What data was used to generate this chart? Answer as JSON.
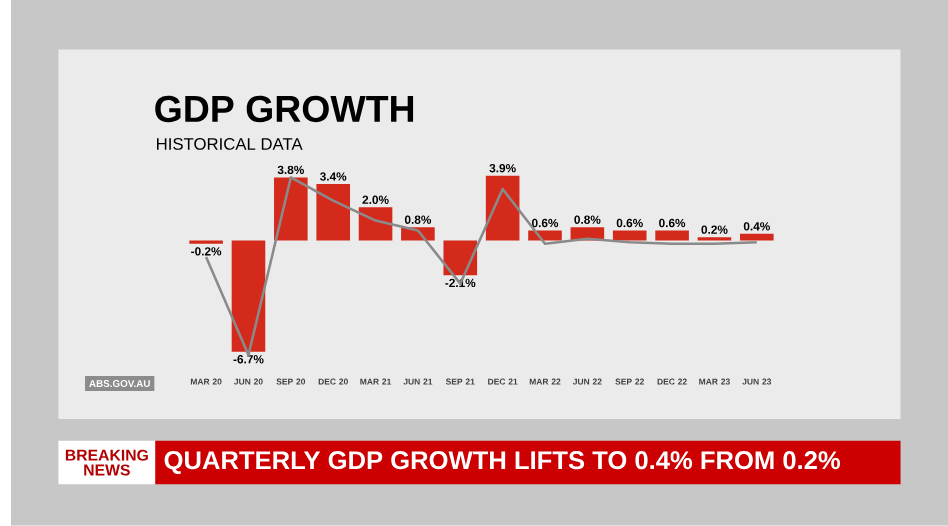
{
  "chart_data": {
    "type": "bar",
    "title": "GDP GROWTH",
    "subtitle": "HISTORICAL DATA",
    "categories": [
      "MAR 20",
      "JUN 20",
      "SEP 20",
      "DEC 20",
      "MAR 21",
      "JUN 21",
      "SEP 21",
      "DEC 21",
      "MAR 22",
      "JUN 22",
      "SEP 22",
      "DEC 22",
      "MAR 23",
      "JUN 23"
    ],
    "series": [
      {
        "color": "#d42a1c",
        "values": [
          -0.2,
          -6.7,
          3.8,
          3.4,
          2.0,
          0.8,
          -2.1,
          3.9,
          0.6,
          0.8,
          0.6,
          0.6,
          0.2,
          0.4
        ],
        "value_labels": [
          "-0.2%",
          "-6.7%",
          "3.8%",
          "3.4%",
          "2.0%",
          "0.8%",
          "-2.1%",
          "3.9%",
          "0.6%",
          "0.8%",
          "0.6%",
          "0.6%",
          "0.2%",
          "0.4%"
        ]
      },
      {
        "type": "line",
        "color": "#8a8a8a",
        "values": [
          -1.0,
          -6.9,
          3.8,
          2.4,
          1.2,
          0.6,
          -2.6,
          3.1,
          -0.2,
          0.1,
          -0.1,
          -0.2,
          -0.2,
          -0.1
        ]
      }
    ],
    "annotations": [
      "ABS.GOV.AU",
      "BREAKING",
      "NEWS",
      "QUARTERLY GDP GROWTH LIFTS TO 0.4% FROM 0.2%"
    ]
  }
}
